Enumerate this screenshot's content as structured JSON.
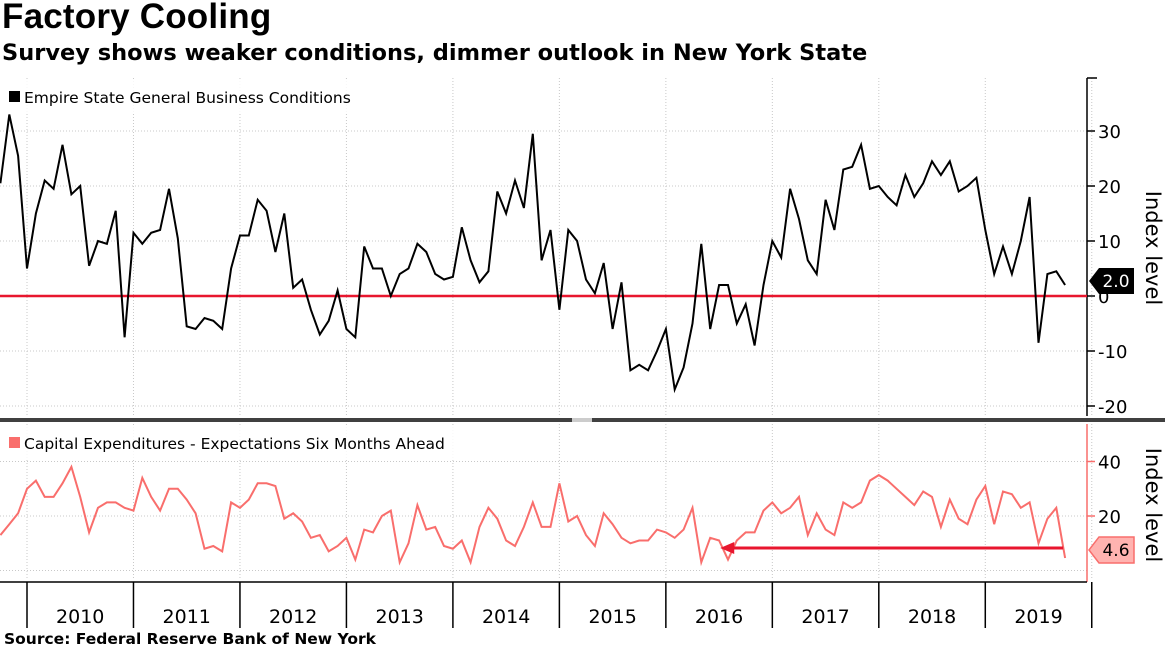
{
  "title": "Factory Cooling",
  "subtitle": "Survey shows weaker conditions, dimmer outlook in New York State",
  "source": "Source: Federal Reserve Bank of New York",
  "chart_data": [
    {
      "type": "line",
      "panel": "top",
      "series": [
        {
          "name": "Empire State General Business Conditions",
          "color": "#000000",
          "values": [
            20.5,
            33,
            25.5,
            5,
            15,
            21,
            19.5,
            27.5,
            18.5,
            20,
            5.5,
            10,
            9.5,
            15.5,
            -7.5,
            11.5,
            9.5,
            11.5,
            12,
            19.5,
            10.5,
            -5.5,
            -6,
            -4,
            -4.5,
            -6,
            5,
            11,
            11,
            17.5,
            15.5,
            8,
            15,
            1.5,
            3,
            -2.5,
            -7,
            -4.5,
            1,
            -6,
            -7.5,
            9,
            5,
            5,
            0,
            4,
            5,
            9.5,
            8,
            4,
            3,
            3.5,
            12.5,
            6.5,
            2.5,
            4.5,
            19,
            15,
            21,
            16,
            29.5,
            6.5,
            12,
            -2.5,
            12,
            10,
            3,
            0.5,
            6,
            -6,
            2.5,
            -13.5,
            -12.5,
            -13.5,
            -10,
            -6,
            -17,
            -13,
            -5,
            9.5,
            -6,
            2,
            2,
            -5,
            -1.5,
            -9,
            2,
            10,
            7,
            19.5,
            14,
            6.5,
            4,
            17.5,
            12,
            23,
            23.5,
            27.5,
            19.5,
            20,
            18,
            16.5,
            22,
            18,
            20.5,
            24.5,
            22,
            24.5,
            19,
            20,
            21.5,
            12,
            4,
            9,
            4,
            10,
            18,
            -8.5,
            4,
            4.5,
            2
          ]
        }
      ],
      "x_start": "2009-10",
      "frequency": "monthly",
      "last_value_label": "2.0",
      "reference_line": 0,
      "reference_line_color": "#e8162e",
      "y_ticks": [
        30,
        20,
        10,
        0,
        -10,
        -20
      ],
      "y_tick_labels": [
        "30",
        "20",
        "10",
        "0",
        "-10",
        "-20"
      ],
      "ylim": [
        -22,
        40
      ],
      "ylabel": "Index level",
      "grid": true,
      "legend": "top-left"
    },
    {
      "type": "line",
      "panel": "bottom",
      "series": [
        {
          "name": "Capital Expenditures - Expectations Six Months Ahead",
          "color": "#f96e6c",
          "values": [
            13,
            17,
            21,
            30,
            33,
            27,
            27,
            32,
            38,
            27,
            14,
            23,
            25,
            25,
            23,
            22,
            34,
            27,
            22,
            30,
            30,
            26,
            21,
            8,
            9,
            7,
            25,
            23,
            26,
            32,
            32,
            31,
            19,
            21,
            18,
            12,
            13,
            7,
            9,
            12,
            4,
            15,
            14,
            20,
            22,
            3,
            10,
            24,
            15,
            16,
            9,
            8,
            11,
            3,
            16,
            23,
            19,
            11,
            9,
            16,
            25,
            16,
            16,
            32,
            18,
            20,
            13,
            9,
            21,
            17,
            12,
            10,
            11,
            11,
            15,
            14,
            12,
            15,
            23,
            3,
            12,
            11,
            4,
            11,
            14,
            14,
            22,
            25,
            21,
            23,
            27,
            13,
            21,
            15,
            13,
            25,
            23,
            25,
            33,
            35,
            33,
            30,
            27,
            24,
            29,
            27,
            16,
            26,
            19,
            17,
            26,
            31,
            17,
            29,
            28,
            23,
            25,
            10,
            19,
            23,
            4.6
          ]
        }
      ],
      "x_start": "2009-10",
      "frequency": "monthly",
      "last_value_label": "4.6",
      "annotation": "arrow from 2019-06 pointing left to comparable low in mid-2016",
      "y_ticks": [
        40,
        20
      ],
      "y_tick_labels": [
        "40",
        "20"
      ],
      "ylim": [
        0,
        52
      ],
      "ylabel": "Index level",
      "grid": true,
      "legend": "top-left"
    }
  ],
  "x_axis": {
    "year_labels": [
      "2010",
      "2011",
      "2012",
      "2013",
      "2014",
      "2015",
      "2016",
      "2017",
      "2018",
      "2019"
    ],
    "start_month": "2009-10",
    "end_month": "2019-12"
  }
}
